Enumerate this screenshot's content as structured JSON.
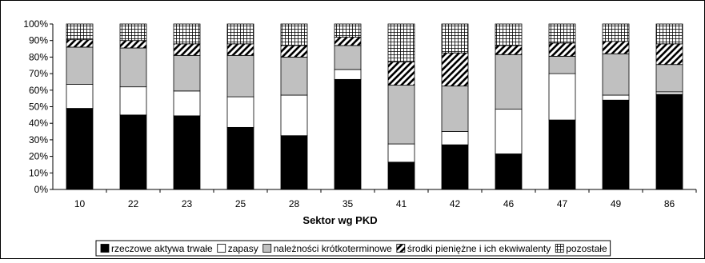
{
  "chart_data": {
    "type": "bar",
    "stacked": true,
    "percent": true,
    "title": "",
    "xlabel": "Sektor wg PKD",
    "ylabel": "",
    "ylim": [
      0,
      100
    ],
    "yticks": [
      "0%",
      "10%",
      "20%",
      "30%",
      "40%",
      "50%",
      "60%",
      "70%",
      "80%",
      "90%",
      "100%"
    ],
    "grid": false,
    "legend_position": "bottom",
    "categories": [
      "10",
      "22",
      "23",
      "25",
      "28",
      "35",
      "41",
      "42",
      "46",
      "47",
      "49",
      "86"
    ],
    "series": [
      {
        "name": "rzeczowe aktywa trwałe",
        "pattern": "solid-black",
        "values": [
          49,
          45,
          44.5,
          37.5,
          32.5,
          66.5,
          16.5,
          27,
          21.5,
          42,
          54,
          57.5
        ]
      },
      {
        "name": "zapasy",
        "pattern": "white",
        "values": [
          14.5,
          17,
          15,
          18.5,
          24.5,
          6,
          11,
          8,
          27,
          28,
          3,
          1.5
        ]
      },
      {
        "name": "należności krótkoterminowe",
        "pattern": "gray",
        "values": [
          22.5,
          23.5,
          21.5,
          25,
          23,
          14.5,
          35.5,
          27.5,
          33,
          10.5,
          25,
          16.5
        ]
      },
      {
        "name": "środki pieniężne i ich ekwiwalenty",
        "pattern": "diagonal-stripes",
        "values": [
          4.5,
          4.5,
          7,
          7,
          7,
          5,
          14,
          20,
          5.5,
          8,
          7.5,
          12.5
        ]
      },
      {
        "name": "pozostałe",
        "pattern": "grid",
        "values": [
          9.5,
          10,
          12,
          12,
          13,
          8,
          23,
          17.5,
          13,
          11.5,
          10.5,
          12
        ]
      }
    ],
    "colors": {
      "gray": "#c0c0c0",
      "black": "#000000",
      "white": "#ffffff"
    }
  }
}
